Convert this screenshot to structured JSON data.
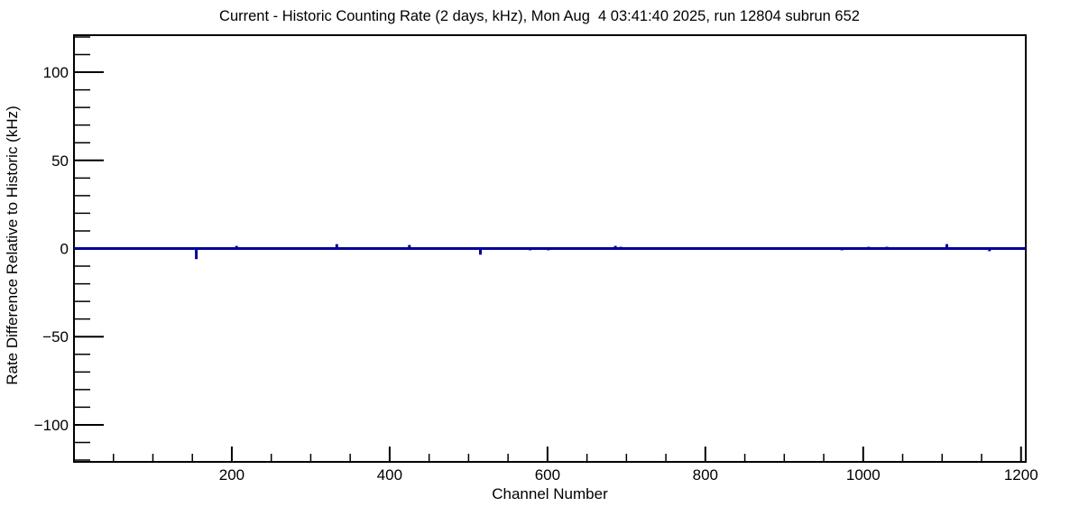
{
  "window": {
    "background": "#ffffff"
  },
  "chart_data": {
    "type": "line",
    "title": "Current - Historic Counting Rate (2 days, kHz), Mon Aug  4 03:41:40 2025, run 12804 subrun 652",
    "xlabel": "Channel Number",
    "ylabel": "Rate Difference Relative to Historic (kHz)",
    "xlim": [
      0,
      1206
    ],
    "ylim": [
      -121,
      121
    ],
    "xticks": [
      200,
      400,
      600,
      800,
      1000,
      1200
    ],
    "xtick_labels": [
      "200",
      "400",
      "600",
      "800",
      "1000",
      "1200"
    ],
    "x_minor_step": 50,
    "yticks": [
      -100,
      -50,
      0,
      50,
      100
    ],
    "ytick_labels": [
      "−100",
      "−50",
      "0",
      "50",
      "100"
    ],
    "y_minor_step": 10,
    "grid": false,
    "legend": null,
    "axis_color": "#000000",
    "line_color": "#000099",
    "baseline_value": 0,
    "series": [
      {
        "name": "rate-difference-vs-channel",
        "baseline": 0,
        "spikes": [
          {
            "channel": 155,
            "value": -6
          },
          {
            "channel": 206,
            "value": 1.5
          },
          {
            "channel": 333,
            "value": 2.5
          },
          {
            "channel": 425,
            "value": 2
          },
          {
            "channel": 515,
            "value": -3.5
          },
          {
            "channel": 578,
            "value": -1
          },
          {
            "channel": 601,
            "value": -1
          },
          {
            "channel": 686,
            "value": 1.5
          },
          {
            "channel": 693,
            "value": 1
          },
          {
            "channel": 973,
            "value": -1
          },
          {
            "channel": 1007,
            "value": 1
          },
          {
            "channel": 1030,
            "value": 1
          },
          {
            "channel": 1106,
            "value": 2.5
          },
          {
            "channel": 1160,
            "value": -1.5
          }
        ]
      }
    ]
  }
}
